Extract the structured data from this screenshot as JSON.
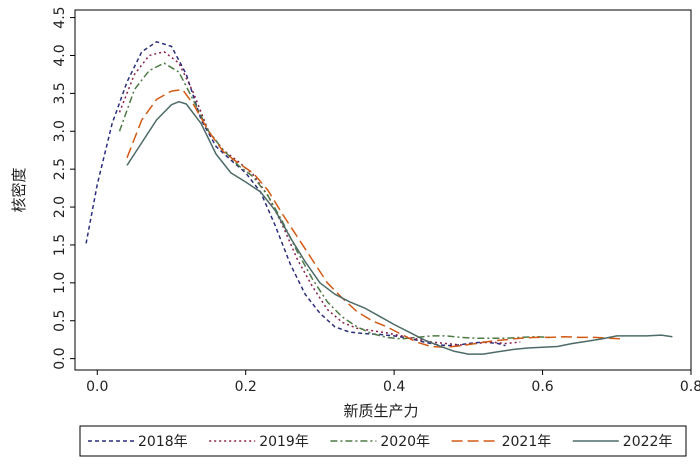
{
  "chart_data": {
    "type": "line",
    "title": "",
    "xlabel": "新质生产力",
    "ylabel": "核密度",
    "xlim": [
      -0.03,
      0.8
    ],
    "ylim": [
      -0.15,
      4.6
    ],
    "xticks": [
      "0.0",
      "0.2",
      "0.4",
      "0.6",
      "0.8"
    ],
    "yticks": [
      "0.0",
      "0.5",
      "1.0",
      "1.5",
      "2.0",
      "2.5",
      "3.0",
      "3.5",
      "4.0",
      "4.5"
    ],
    "grid": false,
    "legend_position": "bottom",
    "series": [
      {
        "name": "2018年",
        "color": "#2b2d7c",
        "dash": "4 3",
        "points": [
          [
            -0.015,
            1.52
          ],
          [
            0.0,
            2.3
          ],
          [
            0.02,
            3.1
          ],
          [
            0.04,
            3.65
          ],
          [
            0.06,
            4.05
          ],
          [
            0.08,
            4.18
          ],
          [
            0.1,
            4.12
          ],
          [
            0.12,
            3.75
          ],
          [
            0.14,
            3.15
          ],
          [
            0.16,
            2.8
          ],
          [
            0.18,
            2.62
          ],
          [
            0.2,
            2.45
          ],
          [
            0.22,
            2.2
          ],
          [
            0.24,
            1.75
          ],
          [
            0.26,
            1.25
          ],
          [
            0.28,
            0.85
          ],
          [
            0.3,
            0.6
          ],
          [
            0.32,
            0.42
          ],
          [
            0.34,
            0.35
          ],
          [
            0.36,
            0.33
          ],
          [
            0.38,
            0.32
          ],
          [
            0.4,
            0.3
          ],
          [
            0.42,
            0.27
          ],
          [
            0.44,
            0.22
          ],
          [
            0.46,
            0.18
          ],
          [
            0.48,
            0.17
          ],
          [
            0.5,
            0.2
          ],
          [
            0.52,
            0.22
          ],
          [
            0.54,
            0.2
          ],
          [
            0.55,
            0.17
          ]
        ]
      },
      {
        "name": "2019年",
        "color": "#8a1f4b",
        "dash": "2 3",
        "points": [
          [
            0.03,
            3.25
          ],
          [
            0.05,
            3.75
          ],
          [
            0.07,
            4.0
          ],
          [
            0.09,
            4.05
          ],
          [
            0.11,
            3.9
          ],
          [
            0.13,
            3.5
          ],
          [
            0.15,
            3.0
          ],
          [
            0.17,
            2.75
          ],
          [
            0.19,
            2.6
          ],
          [
            0.21,
            2.43
          ],
          [
            0.23,
            2.15
          ],
          [
            0.25,
            1.75
          ],
          [
            0.27,
            1.3
          ],
          [
            0.29,
            0.95
          ],
          [
            0.31,
            0.65
          ],
          [
            0.33,
            0.48
          ],
          [
            0.35,
            0.4
          ],
          [
            0.37,
            0.37
          ],
          [
            0.39,
            0.34
          ],
          [
            0.41,
            0.3
          ],
          [
            0.43,
            0.26
          ],
          [
            0.45,
            0.22
          ],
          [
            0.47,
            0.2
          ],
          [
            0.49,
            0.18
          ],
          [
            0.51,
            0.2
          ],
          [
            0.53,
            0.22
          ],
          [
            0.55,
            0.2
          ],
          [
            0.57,
            0.22
          ]
        ]
      },
      {
        "name": "2020年",
        "color": "#4f7a45",
        "dash": "7 3 2 3",
        "points": [
          [
            0.03,
            3.0
          ],
          [
            0.05,
            3.55
          ],
          [
            0.07,
            3.8
          ],
          [
            0.09,
            3.9
          ],
          [
            0.11,
            3.78
          ],
          [
            0.13,
            3.4
          ],
          [
            0.15,
            3.0
          ],
          [
            0.17,
            2.75
          ],
          [
            0.19,
            2.55
          ],
          [
            0.21,
            2.4
          ],
          [
            0.23,
            2.15
          ],
          [
            0.25,
            1.8
          ],
          [
            0.27,
            1.4
          ],
          [
            0.29,
            1.05
          ],
          [
            0.31,
            0.75
          ],
          [
            0.33,
            0.55
          ],
          [
            0.35,
            0.42
          ],
          [
            0.37,
            0.33
          ],
          [
            0.39,
            0.28
          ],
          [
            0.41,
            0.26
          ],
          [
            0.43,
            0.28
          ],
          [
            0.45,
            0.3
          ],
          [
            0.47,
            0.3
          ],
          [
            0.49,
            0.28
          ],
          [
            0.51,
            0.27
          ],
          [
            0.53,
            0.27
          ],
          [
            0.55,
            0.27
          ],
          [
            0.57,
            0.28
          ],
          [
            0.59,
            0.29
          ],
          [
            0.61,
            0.28
          ]
        ]
      },
      {
        "name": "2021年",
        "color": "#d35a14",
        "dash": "11 5",
        "points": [
          [
            0.04,
            2.65
          ],
          [
            0.06,
            3.15
          ],
          [
            0.08,
            3.42
          ],
          [
            0.1,
            3.53
          ],
          [
            0.115,
            3.55
          ],
          [
            0.13,
            3.35
          ],
          [
            0.15,
            3.0
          ],
          [
            0.17,
            2.73
          ],
          [
            0.19,
            2.58
          ],
          [
            0.21,
            2.45
          ],
          [
            0.23,
            2.22
          ],
          [
            0.25,
            1.9
          ],
          [
            0.27,
            1.6
          ],
          [
            0.29,
            1.3
          ],
          [
            0.31,
            1.0
          ],
          [
            0.33,
            0.8
          ],
          [
            0.35,
            0.62
          ],
          [
            0.37,
            0.5
          ],
          [
            0.39,
            0.42
          ],
          [
            0.41,
            0.32
          ],
          [
            0.43,
            0.22
          ],
          [
            0.45,
            0.16
          ],
          [
            0.47,
            0.15
          ],
          [
            0.49,
            0.17
          ],
          [
            0.51,
            0.2
          ],
          [
            0.53,
            0.23
          ],
          [
            0.55,
            0.25
          ],
          [
            0.57,
            0.27
          ],
          [
            0.59,
            0.28
          ],
          [
            0.61,
            0.28
          ],
          [
            0.63,
            0.29
          ],
          [
            0.65,
            0.28
          ],
          [
            0.67,
            0.28
          ],
          [
            0.69,
            0.27
          ],
          [
            0.71,
            0.26
          ]
        ]
      },
      {
        "name": "2022年",
        "color": "#4d6b68",
        "dash": "",
        "points": [
          [
            0.04,
            2.55
          ],
          [
            0.06,
            2.85
          ],
          [
            0.08,
            3.15
          ],
          [
            0.1,
            3.35
          ],
          [
            0.11,
            3.39
          ],
          [
            0.12,
            3.36
          ],
          [
            0.14,
            3.1
          ],
          [
            0.16,
            2.7
          ],
          [
            0.18,
            2.45
          ],
          [
            0.2,
            2.33
          ],
          [
            0.22,
            2.2
          ],
          [
            0.24,
            1.95
          ],
          [
            0.26,
            1.6
          ],
          [
            0.28,
            1.28
          ],
          [
            0.3,
            1.0
          ],
          [
            0.32,
            0.85
          ],
          [
            0.34,
            0.75
          ],
          [
            0.36,
            0.67
          ],
          [
            0.38,
            0.56
          ],
          [
            0.4,
            0.45
          ],
          [
            0.42,
            0.35
          ],
          [
            0.44,
            0.25
          ],
          [
            0.46,
            0.17
          ],
          [
            0.48,
            0.1
          ],
          [
            0.5,
            0.06
          ],
          [
            0.52,
            0.06
          ],
          [
            0.54,
            0.09
          ],
          [
            0.56,
            0.12
          ],
          [
            0.58,
            0.14
          ],
          [
            0.6,
            0.15
          ],
          [
            0.62,
            0.16
          ],
          [
            0.64,
            0.2
          ],
          [
            0.66,
            0.23
          ],
          [
            0.68,
            0.26
          ],
          [
            0.7,
            0.3
          ],
          [
            0.72,
            0.3
          ],
          [
            0.74,
            0.3
          ],
          [
            0.76,
            0.31
          ],
          [
            0.775,
            0.29
          ]
        ]
      }
    ]
  }
}
